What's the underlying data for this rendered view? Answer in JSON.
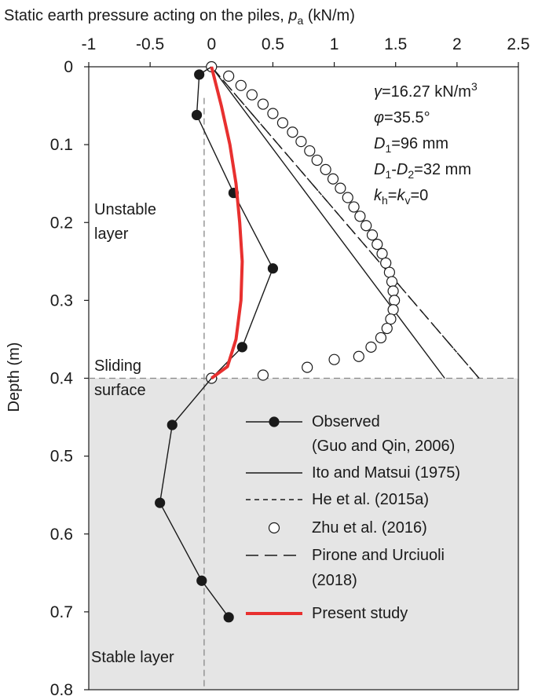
{
  "chart_data": {
    "type": "line",
    "xlabel_prefix": "Static earth pressure acting on the piles, ",
    "xlabel_var": "p",
    "xlabel_sub": "a",
    "xlabel_unit": " (kN/m)",
    "ylabel": "Depth (m)",
    "xlim": [
      -1,
      2.5
    ],
    "ylim": [
      0,
      0.8
    ],
    "y_reversed": true,
    "x_axis_position": "top",
    "xticks": [
      -1,
      -0.5,
      0,
      0.5,
      1,
      1.5,
      2,
      2.5
    ],
    "xtick_labels": [
      "-1",
      "-0.5",
      "0",
      "0.5",
      "1",
      "1.5",
      "2",
      "2.5"
    ],
    "yticks": [
      0,
      0.1,
      0.2,
      0.3,
      0.4,
      0.5,
      0.6,
      0.7,
      0.8
    ],
    "ytick_labels": [
      "0",
      "0.1",
      "0.2",
      "0.3",
      "0.4",
      "0.5",
      "0.6",
      "0.7",
      "0.8"
    ],
    "stable_region_start_depth": 0.4,
    "sliding_surface_depth": 0.4,
    "vertical_reference_x": -0.06,
    "region_labels": {
      "unstable_line1": "Unstable",
      "unstable_line2": "layer",
      "sliding_line1": "Sliding",
      "sliding_line2": "surface",
      "stable": "Stable layer"
    },
    "params": {
      "gamma": {
        "sym": "γ",
        "sub": "",
        "val": "=16.27 kN/m",
        "sup": "3"
      },
      "phi": {
        "sym": "φ",
        "val": "=35.5°"
      },
      "d1": {
        "sym": "D",
        "sub": "1",
        "val": "=96 mm"
      },
      "d1d2": {
        "sym1": "D",
        "sub1": "1",
        "mid": "-",
        "sym2": "D",
        "sub2": "2",
        "val": "=32 mm"
      },
      "k": {
        "sym1": "k",
        "sub1": "h",
        "mid": "=",
        "sym2": "k",
        "sub2": "v",
        "val": "=0"
      }
    },
    "series": [
      {
        "name": "Observed\n(Guo and Qin, 2006)",
        "legend_line1": "Observed",
        "legend_line2": "(Guo and Qin, 2006)",
        "style": "line-filled-markers",
        "color": "#1a1a1a",
        "points": [
          [
            0,
            0
          ],
          [
            -0.1,
            0.01
          ],
          [
            -0.12,
            0.062
          ],
          [
            0.18,
            0.162
          ],
          [
            0.5,
            0.259
          ],
          [
            0.25,
            0.36
          ],
          [
            0,
            0.4
          ],
          [
            -0.32,
            0.46
          ],
          [
            -0.36,
            0.5
          ],
          [
            -0.42,
            0.56
          ],
          [
            -0.08,
            0.66
          ],
          [
            0.14,
            0.707
          ]
        ]
      },
      {
        "name": "Ito and Matsui (1975)",
        "legend_line1": "Ito and Matsui (1975)",
        "style": "solid",
        "color": "#1a1a1a",
        "points": [
          [
            0,
            0
          ],
          [
            1.9,
            0.4
          ]
        ]
      },
      {
        "name": "He et al. (2015a)",
        "legend_line1": "He et al. (2015a)",
        "style": "short-dash",
        "color": "#1a1a1a",
        "points": [
          [
            0,
            0
          ],
          [
            2.18,
            0.4
          ]
        ]
      },
      {
        "name": "Zhu et al. (2016)",
        "legend_line1": "Zhu et al. (2016)",
        "style": "hollow-markers",
        "color": "#1a1a1a",
        "points": [
          [
            0,
            0
          ],
          [
            0.14,
            0.012
          ],
          [
            0.24,
            0.024
          ],
          [
            0.33,
            0.036
          ],
          [
            0.42,
            0.048
          ],
          [
            0.5,
            0.06
          ],
          [
            0.58,
            0.072
          ],
          [
            0.66,
            0.084
          ],
          [
            0.73,
            0.096
          ],
          [
            0.8,
            0.108
          ],
          [
            0.86,
            0.12
          ],
          [
            0.93,
            0.132
          ],
          [
            0.99,
            0.144
          ],
          [
            1.05,
            0.156
          ],
          [
            1.11,
            0.168
          ],
          [
            1.16,
            0.18
          ],
          [
            1.21,
            0.192
          ],
          [
            1.26,
            0.204
          ],
          [
            1.31,
            0.216
          ],
          [
            1.35,
            0.228
          ],
          [
            1.39,
            0.24
          ],
          [
            1.42,
            0.252
          ],
          [
            1.45,
            0.264
          ],
          [
            1.47,
            0.276
          ],
          [
            1.48,
            0.288
          ],
          [
            1.49,
            0.3
          ],
          [
            1.48,
            0.312
          ],
          [
            1.46,
            0.324
          ],
          [
            1.43,
            0.336
          ],
          [
            1.38,
            0.348
          ],
          [
            1.3,
            0.36
          ],
          [
            1.2,
            0.372
          ],
          [
            1.0,
            0.376
          ],
          [
            0.78,
            0.386
          ],
          [
            0.42,
            0.396
          ],
          [
            0,
            0.4
          ]
        ]
      },
      {
        "name": "Pirone and Urciuoli\n(2018)",
        "legend_line1": "Pirone and Urciuoli",
        "legend_line2": "(2018)",
        "style": "long-dash",
        "color": "#1a1a1a",
        "points": [
          [
            0,
            0
          ],
          [
            2.18,
            0.4
          ]
        ]
      },
      {
        "name": "Present study",
        "legend_line1": "Present study",
        "style": "thick-solid",
        "color": "#e8302f",
        "points": [
          [
            0,
            0
          ],
          [
            0.08,
            0.05
          ],
          [
            0.15,
            0.1
          ],
          [
            0.2,
            0.15
          ],
          [
            0.23,
            0.2
          ],
          [
            0.25,
            0.25
          ],
          [
            0.24,
            0.3
          ],
          [
            0.2,
            0.35
          ],
          [
            0.13,
            0.385
          ],
          [
            0,
            0.4
          ]
        ]
      }
    ]
  }
}
